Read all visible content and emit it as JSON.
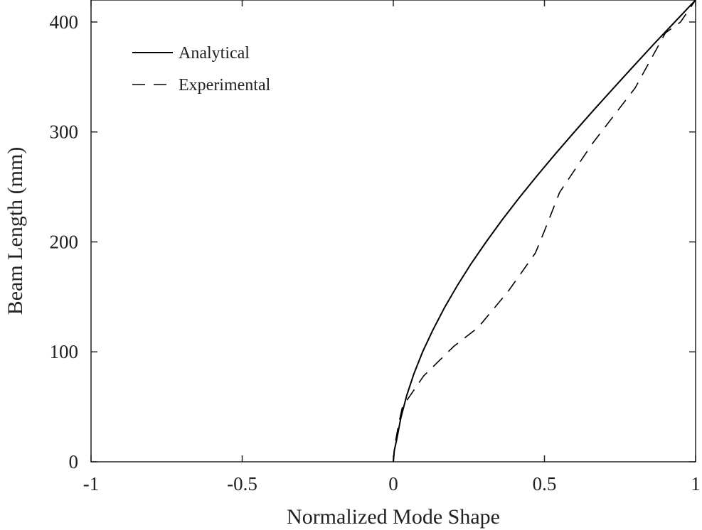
{
  "chart_data": {
    "type": "line",
    "title": "",
    "xlabel": "Normalized Mode Shape",
    "ylabel": "Beam Length (mm)",
    "xlim": [
      -1,
      1
    ],
    "ylim": [
      0,
      420
    ],
    "xticks": [
      -1,
      -0.5,
      0,
      0.5,
      1
    ],
    "xtick_labels": [
      "-1",
      "-0.5",
      "0",
      "0.5",
      "1"
    ],
    "yticks": [
      0,
      100,
      200,
      300,
      400
    ],
    "ytick_labels": [
      "0",
      "100",
      "200",
      "300",
      "400"
    ],
    "grid": false,
    "legend_position": "top-left",
    "series": [
      {
        "name": "Analytical",
        "style": "solid",
        "color": "#000000",
        "x": [
          0,
          0.003,
          0.011,
          0.025,
          0.044,
          0.068,
          0.097,
          0.131,
          0.169,
          0.211,
          0.257,
          0.307,
          0.36,
          0.416,
          0.475,
          0.536,
          0.599,
          0.663,
          0.729,
          0.795,
          0.862,
          0.931,
          1.0
        ],
        "y": [
          0,
          10,
          20,
          40,
          60,
          80,
          100,
          120,
          140,
          160,
          180,
          200,
          220,
          240,
          260,
          280,
          300,
          320,
          340,
          360,
          380,
          400,
          420
        ]
      },
      {
        "name": "Experimental",
        "style": "dashed",
        "color": "#000000",
        "x": [
          0,
          0.005,
          0.018,
          0.03,
          0.1,
          0.2,
          0.28,
          0.38,
          0.47,
          0.5,
          0.55,
          0.66,
          0.8,
          0.9,
          0.95,
          1.0
        ],
        "y": [
          0,
          15,
          35,
          50,
          78,
          105,
          122,
          155,
          190,
          210,
          245,
          290,
          340,
          390,
          400,
          420
        ]
      }
    ]
  }
}
